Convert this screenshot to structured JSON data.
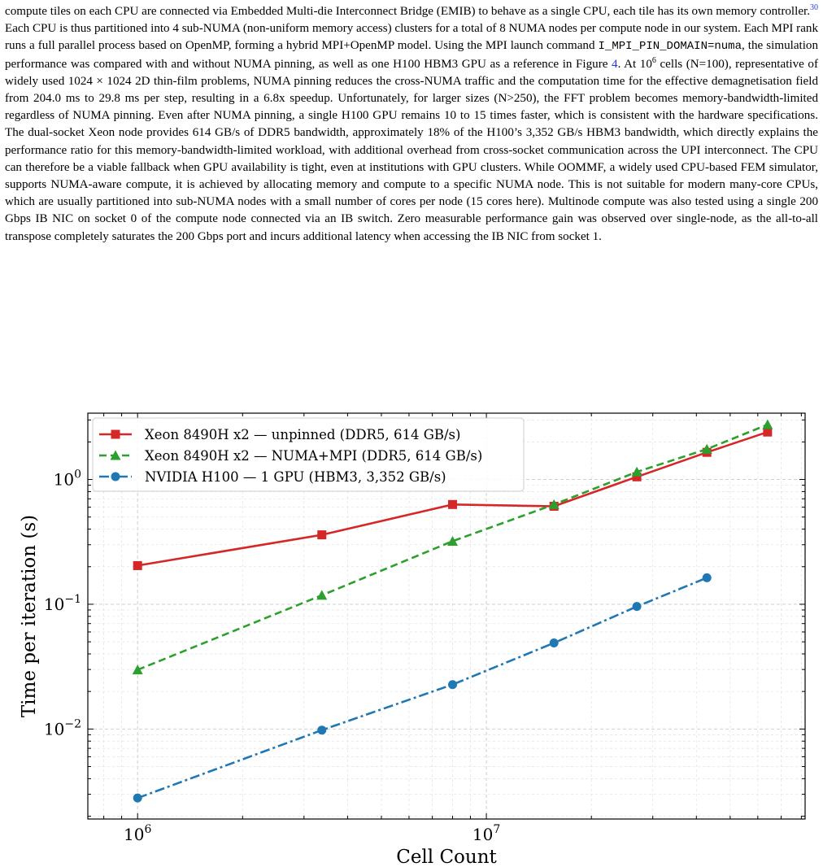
{
  "body_text": {
    "p1": "compute tiles on each CPU are connected via Embedded Multi-die Interconnect Bridge (EMIB) to behave as a single CPU, each tile has its own memory controller.",
    "ref30": "30",
    "p2": " Each CPU is thus partitioned into 4 sub-NUMA (non-uniform memory access) clusters for a total of 8 NUMA nodes per compute node in our system. Each MPI rank runs a full parallel process based on OpenMP, forming a hybrid MPI+OpenMP model. Using the MPI launch command ",
    "code": "I_MPI_PIN_DOMAIN=numa",
    "p3": ", the simulation performance was compared with and without NUMA pinning, as well as one H100 HBM3 GPU as a reference in ",
    "figref_prefix": "Figure ",
    "figref_num": "4",
    "p4": ". At 10",
    "p4_sup": "6",
    "p5": " cells (N=100), representative of widely used 1024 × 1024 2D thin-film problems, NUMA pinning reduces the cross-NUMA traffic and the computation time for the effective demagnetisation field from 204.0 ms to 29.8 ms per step, resulting in a 6.8x speedup. Unfortunately, for larger sizes (N>250), the FFT problem becomes memory-bandwidth-limited regardless of NUMA pinning. Even after NUMA pinning, a single H100 GPU remains  10 to 15 times faster, which is consistent with the hardware specifications. The dual-socket Xeon node provides 614 GB/s of DDR5 bandwidth, approximately 18% of the H100’s 3,352 GB/s HBM3 bandwidth, which directly explains the performance ratio for this memory-bandwidth-limited workload, with additional overhead from cross-socket communication across the UPI interconnect. The CPU can therefore be a viable fallback when GPU availability is tight, even at institutions with GPU clusters. While OOMMF, a widely used CPU-based FEM simulator, supports NUMA-aware compute, it is achieved by allocating memory and compute to a specific NUMA node. This is not suitable for modern many-core CPUs, which are usually partitioned into sub-NUMA nodes with a small number of cores per node (15 cores here). Multinode compute was also tested using a single 200 Gbps IB NIC on socket 0 of the compute node connected via an IB switch. Zero measurable performance gain was observed over single-node, as the all-to-all transpose completely saturates the 200 Gbps port and incurs additional latency when accessing the IB NIC from socket 1."
  },
  "chart_data": {
    "type": "line",
    "xlabel": "Cell Count",
    "ylabel": "Time per iteration (s)",
    "xscale": "log",
    "yscale": "log",
    "xlim": [
      720000,
      82000000
    ],
    "ylim": [
      0.0019,
      3.4
    ],
    "x_ticks": [
      {
        "value": 1000000,
        "base": "10",
        "exp": "6"
      },
      {
        "value": 10000000,
        "base": "10",
        "exp": "7"
      }
    ],
    "y_ticks": [
      {
        "value": 0.01,
        "base": "10",
        "exp": "−2"
      },
      {
        "value": 0.1,
        "base": "10",
        "exp": "−1"
      },
      {
        "value": 1,
        "base": "10",
        "exp": "0"
      }
    ],
    "grid": true,
    "legend_position": "top-left",
    "series": [
      {
        "name": "Xeon 8490H x2 — unpinned (DDR5, 614 GB/s)",
        "color": "#d62728",
        "marker": "square",
        "dash": "solid",
        "x": [
          1000000,
          3375000,
          8000000,
          15625000,
          27000000,
          42875000,
          64000000
        ],
        "y": [
          0.204,
          0.36,
          0.63,
          0.61,
          1.05,
          1.65,
          2.4
        ]
      },
      {
        "name": "Xeon 8490H x2  — NUMA+MPI (DDR5, 614 GB/s)",
        "color": "#2ca02c",
        "marker": "triangle",
        "dash": "dashed",
        "x": [
          1000000,
          3375000,
          8000000,
          15625000,
          27000000,
          42875000,
          64000000
        ],
        "y": [
          0.0298,
          0.118,
          0.32,
          0.63,
          1.15,
          1.75,
          2.75
        ]
      },
      {
        "name": "NVIDIA H100 — 1 GPU (HBM3, 3,352 GB/s)",
        "color": "#1f77b4",
        "marker": "circle",
        "dash": "dashdot",
        "x": [
          1000000,
          3375000,
          8000000,
          15625000,
          27000000,
          42875000
        ],
        "y": [
          0.0028,
          0.0098,
          0.0227,
          0.049,
          0.096,
          0.163
        ]
      }
    ]
  }
}
